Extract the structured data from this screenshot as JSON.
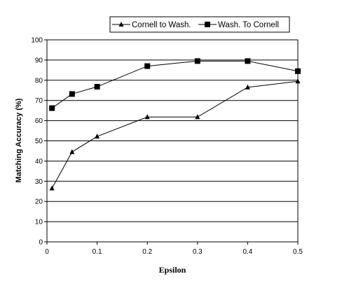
{
  "chart_data": {
    "type": "line",
    "xlabel": "Epsilon",
    "ylabel": "Matching Accuracy (%)",
    "x": [
      0.01,
      0.05,
      0.1,
      0.2,
      0.3,
      0.4,
      0.5
    ],
    "xticks": [
      0,
      0.1,
      0.2,
      0.3,
      0.4,
      0.5
    ],
    "xtick_labels": [
      "0",
      "0.1",
      "0.2",
      "0.3",
      "0.4",
      "0.5"
    ],
    "xlim": [
      0,
      0.5
    ],
    "ylim": [
      0,
      100
    ],
    "yticks": [
      0,
      10,
      20,
      30,
      40,
      50,
      60,
      70,
      80,
      90,
      100
    ],
    "ytick_labels": [
      "0",
      "10",
      "20",
      "30",
      "40",
      "50",
      "60",
      "70",
      "80",
      "90",
      "100"
    ],
    "grid": "horizontal",
    "legend_position": "top-right",
    "series": [
      {
        "name": "Cornell to Wash.",
        "marker": "triangle",
        "color": "#000000",
        "values": [
          26.5,
          44.5,
          52.2,
          61.8,
          61.8,
          76.5,
          79.5
        ]
      },
      {
        "name": "Wash. To Cornell",
        "marker": "square",
        "color": "#000000",
        "values": [
          66.2,
          73.2,
          76.8,
          87.0,
          89.5,
          89.5,
          84.5
        ]
      }
    ]
  }
}
